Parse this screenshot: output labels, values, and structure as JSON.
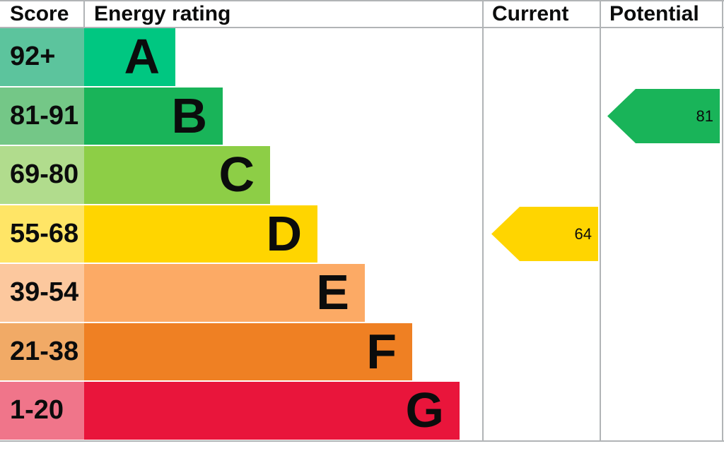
{
  "header": {
    "score": "Score",
    "energy_rating": "Energy rating",
    "current": "Current",
    "potential": "Potential"
  },
  "bands": [
    {
      "range": "92+",
      "letter": "A",
      "bar_color": "#00c781",
      "range_bg": "#5cc49d"
    },
    {
      "range": "81-91",
      "letter": "B",
      "bar_color": "#19b459",
      "range_bg": "#74c787"
    },
    {
      "range": "69-80",
      "letter": "C",
      "bar_color": "#8dce46",
      "range_bg": "#b1dc8d"
    },
    {
      "range": "55-68",
      "letter": "D",
      "bar_color": "#ffd500",
      "range_bg": "#ffe566"
    },
    {
      "range": "39-54",
      "letter": "E",
      "bar_color": "#fcaa65",
      "range_bg": "#fcc89e"
    },
    {
      "range": "21-38",
      "letter": "F",
      "bar_color": "#ef8023",
      "range_bg": "#f1aa66"
    },
    {
      "range": "1-20",
      "letter": "G",
      "bar_color": "#e9153b",
      "range_bg": "#f0758a"
    }
  ],
  "markers": {
    "current": {
      "value": "64",
      "band": "D",
      "band_index": 3,
      "color": "#ffd500"
    },
    "potential": {
      "value": "81",
      "band": "B",
      "band_index": 1,
      "color": "#19b459"
    }
  },
  "colors": {
    "border": "#b1b4b6",
    "text": "#0b0c0c"
  },
  "chart_data": {
    "type": "bar",
    "title": "Energy rating (EPC band chart)",
    "columns": [
      "Score",
      "Energy rating",
      "Current",
      "Potential"
    ],
    "categories": [
      "A",
      "B",
      "C",
      "D",
      "E",
      "F",
      "G"
    ],
    "score_ranges": [
      "92+",
      "81-91",
      "69-80",
      "55-68",
      "39-54",
      "21-38",
      "1-20"
    ],
    "band_colors": [
      "#00c781",
      "#19b459",
      "#8dce46",
      "#ffd500",
      "#fcaa65",
      "#ef8023",
      "#e9153b"
    ],
    "bar_relative_lengths": [
      1,
      2,
      3,
      4,
      5,
      6,
      7
    ],
    "current": {
      "value": 64,
      "band": "D"
    },
    "potential": {
      "value": 81,
      "band": "B"
    },
    "legend_position": "none",
    "grid": false
  }
}
